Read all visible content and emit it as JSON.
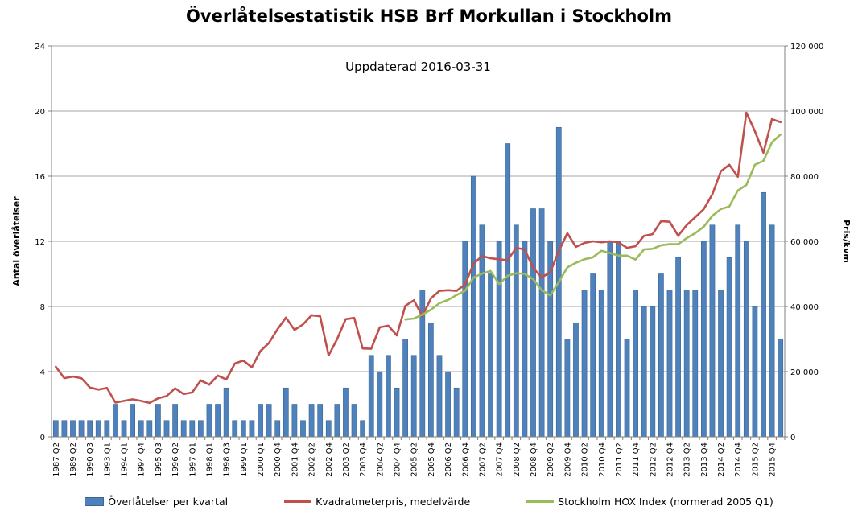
{
  "page": {
    "title": "Överlåtelsestatistik HSB Brf Morkullan i Stockholm",
    "subtitle": "Uppdaterad 2016-03-31"
  },
  "chart_data": {
    "type": "bar",
    "combo": "bar + two lines, dual axis",
    "title": "Överlåtelsestatistik HSB Brf Morkullan i Stockholm",
    "subtitle": "Uppdaterad 2016-03-31",
    "categories": [
      "1987 Q2",
      "",
      "1989 Q2",
      "",
      "1990 Q3",
      "",
      "1993 Q1",
      "",
      "1994 Q1",
      "",
      "1994 Q4",
      "",
      "1995 Q3",
      "",
      "1996 Q2",
      "",
      "1997 Q1",
      "",
      "1998 Q1",
      "",
      "1998 Q3",
      "",
      "1999 Q1",
      "",
      "2000 Q1",
      "",
      "2000 Q4",
      "",
      "2001 Q4",
      "",
      "2002 Q2",
      "",
      "2002 Q4",
      "",
      "2003 Q2",
      "",
      "2003 Q4",
      "",
      "2004 Q2",
      "",
      "2004 Q4",
      "",
      "2005 Q2",
      "",
      "2005 Q4",
      "",
      "2006 Q2",
      "",
      "2006 Q4",
      "",
      "2007 Q2",
      "",
      "2007 Q4",
      "",
      "2008 Q2",
      "",
      "2008 Q4",
      "",
      "2009 Q2",
      "",
      "2009 Q4",
      "",
      "2010 Q2",
      "",
      "2010 Q4",
      "",
      "2011 Q2",
      "",
      "2011 Q4",
      "",
      "2012 Q2",
      "",
      "2012 Q4",
      "",
      "2013 Q2",
      "",
      "2013 Q4",
      "",
      "2014 Q2",
      "",
      "2014 Q4",
      "",
      "2015 Q2",
      "",
      "2015 Q4",
      ""
    ],
    "left_axis": {
      "title": "Antal överlåtelser",
      "min": 0,
      "max": 24,
      "step": 4,
      "tick_labels": [
        "0",
        "4",
        "8",
        "12",
        "16",
        "20",
        "24"
      ]
    },
    "right_axis": {
      "title": "Pris/kvm",
      "min": 0,
      "max": 120000,
      "step": 20000,
      "tick_labels": [
        "0",
        "20 000",
        "40 000",
        "60 000",
        "80 000",
        "100 000",
        "120 000"
      ]
    },
    "grid": true,
    "legend_position": "bottom",
    "series": [
      {
        "name": "Överlåtelser per kvartal",
        "type": "bar",
        "axis": "left",
        "color": "#4F81BD",
        "values": [
          1,
          1,
          1,
          1,
          1,
          1,
          1,
          2,
          1,
          2,
          1,
          1,
          2,
          1,
          2,
          1,
          1,
          1,
          2,
          2,
          3,
          1,
          1,
          1,
          2,
          2,
          1,
          3,
          2,
          1,
          2,
          2,
          1,
          2,
          3,
          2,
          1,
          5,
          4,
          5,
          3,
          6,
          5,
          9,
          7,
          5,
          4,
          3,
          12,
          16,
          13,
          10,
          12,
          18,
          13,
          12,
          14,
          14,
          12,
          19,
          6,
          7,
          9,
          10,
          9,
          12,
          12,
          6,
          9,
          8,
          8,
          10,
          9,
          11,
          9,
          9,
          12,
          13,
          9,
          11,
          13,
          12,
          8,
          15,
          13,
          6
        ]
      },
      {
        "name": "Kvadratmeterpris, medelvärde",
        "type": "line",
        "axis": "right",
        "color": "#C0504D",
        "values": [
          21500,
          18000,
          18500,
          18000,
          15100,
          14500,
          15000,
          10500,
          11000,
          11500,
          11000,
          10400,
          11800,
          12500,
          14900,
          13100,
          13600,
          17300,
          16000,
          18800,
          17600,
          22500,
          23400,
          21300,
          26300,
          28800,
          33000,
          36600,
          32800,
          34500,
          37300,
          37000,
          25000,
          30000,
          36100,
          36500,
          27100,
          27000,
          33600,
          34100,
          31100,
          40200,
          41900,
          37000,
          42500,
          44800,
          45000,
          44800,
          46800,
          53100,
          55500,
          54800,
          54500,
          54200,
          58000,
          57500,
          51800,
          48900,
          50600,
          57000,
          62500,
          58300,
          59500,
          60000,
          59700,
          60000,
          59700,
          58000,
          58500,
          61700,
          62200,
          66200,
          66000,
          61700,
          65000,
          67400,
          69900,
          74400,
          81500,
          83500,
          79800,
          99500,
          93800,
          87200,
          97500,
          96600
        ]
      },
      {
        "name": "Stockholm HOX Index (normerad 2005 Q1)",
        "type": "line",
        "axis": "right",
        "color": "#9BBB59",
        "values": [
          null,
          null,
          null,
          null,
          null,
          null,
          null,
          null,
          null,
          null,
          null,
          null,
          null,
          null,
          null,
          null,
          null,
          null,
          null,
          null,
          null,
          null,
          null,
          null,
          null,
          null,
          null,
          null,
          null,
          null,
          null,
          null,
          null,
          null,
          null,
          null,
          null,
          null,
          null,
          null,
          null,
          36000,
          36300,
          37500,
          39000,
          41000,
          42000,
          43500,
          44800,
          48900,
          50100,
          50900,
          46900,
          49400,
          50200,
          50000,
          48400,
          45000,
          43400,
          47500,
          52000,
          53400,
          54500,
          55100,
          57100,
          56400,
          55600,
          55600,
          54400,
          57500,
          57700,
          58800,
          59100,
          59100,
          61000,
          62500,
          64500,
          67800,
          69900,
          70700,
          75600,
          77300,
          83500,
          84700,
          90400,
          92800
        ]
      }
    ],
    "colors": {
      "bar": "#4F81BD",
      "price_line": "#C0504D",
      "hox_line": "#9BBB59",
      "gridline": "#A6A6A6",
      "axis_line": "#808080"
    }
  }
}
